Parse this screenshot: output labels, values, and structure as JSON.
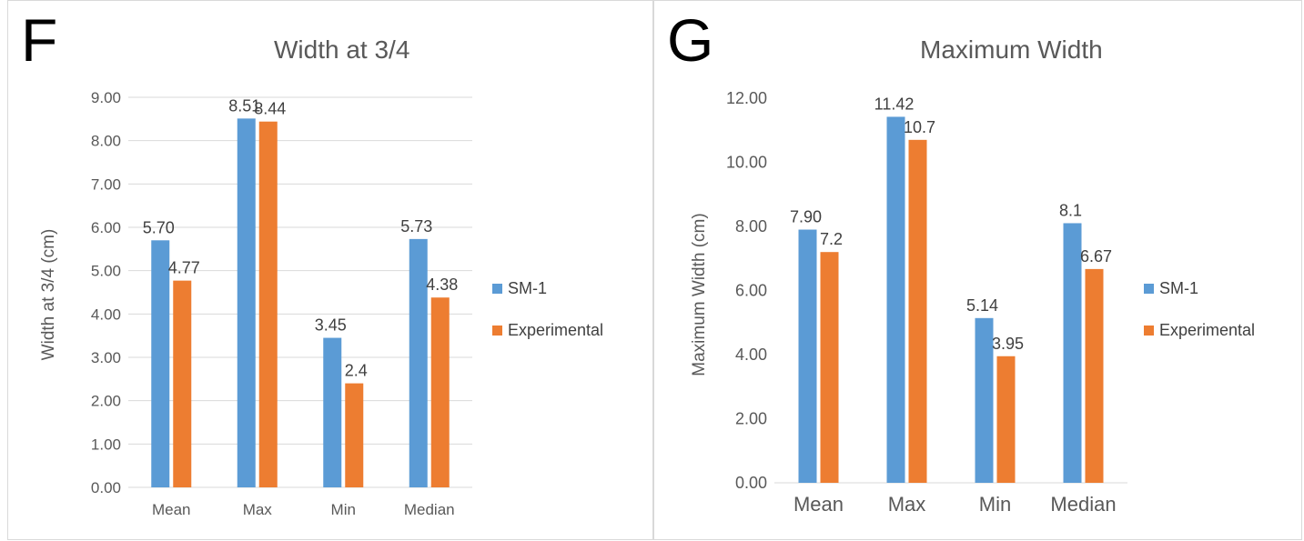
{
  "panels": [
    {
      "letter": "F",
      "legend": [
        "SM-1",
        "Experimental"
      ]
    },
    {
      "letter": "G",
      "legend": [
        "SM-1",
        "Experimental"
      ]
    }
  ],
  "colors": {
    "sm1": "#5b9bd5",
    "experimental": "#ed7d31",
    "grid": "#d9d9d9",
    "text": "#595959"
  },
  "chart_data": [
    {
      "type": "bar",
      "title": "Width at 3/4",
      "ylabel": "Width at 3/4 (cm)",
      "xlabel": "",
      "categories": [
        "Mean",
        "Max",
        "Min",
        "Median"
      ],
      "ylim": [
        0,
        9
      ],
      "yticks": [
        "0.00",
        "1.00",
        "2.00",
        "3.00",
        "4.00",
        "5.00",
        "6.00",
        "7.00",
        "8.00",
        "9.00"
      ],
      "grid": true,
      "legend_position": "right",
      "series": [
        {
          "name": "SM-1",
          "values": [
            5.7,
            8.51,
            3.45,
            5.73
          ],
          "labels": [
            "5.70",
            "8.51",
            "3.45",
            "5.73"
          ]
        },
        {
          "name": "Experimental",
          "values": [
            4.77,
            8.44,
            2.4,
            4.38
          ],
          "labels": [
            "4.77",
            "8.44",
            "2.4",
            "4.38"
          ]
        }
      ]
    },
    {
      "type": "bar",
      "title": "Maximum Width",
      "ylabel": "Maximum Width (cm)",
      "xlabel": "",
      "categories": [
        "Mean",
        "Max",
        "Min",
        "Median"
      ],
      "ylim": [
        0,
        12
      ],
      "yticks": [
        "0.00",
        "2.00",
        "4.00",
        "6.00",
        "8.00",
        "10.00",
        "12.00"
      ],
      "grid": false,
      "legend_position": "right",
      "series": [
        {
          "name": "SM-1",
          "values": [
            7.9,
            11.42,
            5.14,
            8.1
          ],
          "labels": [
            "7.90",
            "11.42",
            "5.14",
            "8.1"
          ]
        },
        {
          "name": "Experimental",
          "values": [
            7.2,
            10.7,
            3.95,
            6.67
          ],
          "labels": [
            "7.2",
            "10.7",
            "3.95",
            "6.67"
          ]
        }
      ]
    }
  ]
}
